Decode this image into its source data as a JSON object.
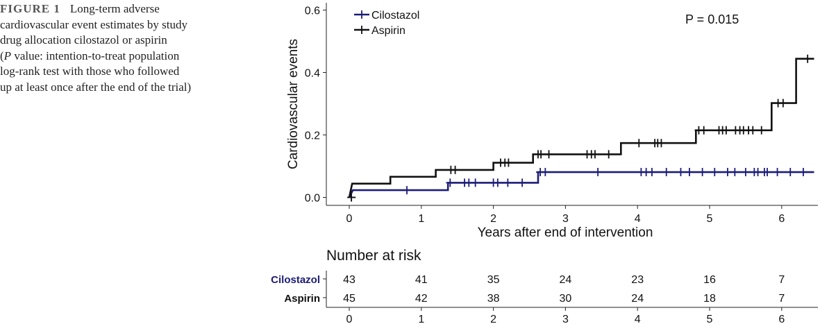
{
  "caption": {
    "label": "FIGURE 1",
    "line1": "Long-term adverse",
    "rest_before_p": "cardiovascular event estimates by study\ndrug allocation cilostazol or aspirin\n(",
    "p_italic": "P",
    "rest_after_p": " value: intention-to-treat population\nlog-rank test with those who followed\nup at least once after the end of the trial)"
  },
  "chart_data": {
    "type": "line",
    "subtype": "kaplan-meier-step",
    "xlabel": "Years after end of intervention",
    "ylabel": "Cardiovascular events",
    "xlim": [
      -0.3,
      6.45
    ],
    "ylim": [
      -0.02,
      0.6
    ],
    "x_ticks": [
      0,
      1,
      2,
      3,
      4,
      5,
      6
    ],
    "y_ticks": [
      0.0,
      0.2,
      0.4,
      0.6
    ],
    "y_tick_labels": [
      "0.0",
      "0.2",
      "0.4",
      "0.6"
    ],
    "annotation": "P = 0.015",
    "legend": {
      "placement": "top-left",
      "entries": [
        "Cilostazol",
        "Aspirin"
      ]
    },
    "series": [
      {
        "name": "Cilostazol",
        "color": "#1c1c78",
        "step_points": [
          [
            0,
            0
          ],
          [
            0.05,
            0.023
          ],
          [
            1.37,
            0.023
          ],
          [
            1.37,
            0.047
          ],
          [
            2.62,
            0.047
          ],
          [
            2.62,
            0.081
          ],
          [
            6.45,
            0.081
          ]
        ],
        "censor_x": [
          0.03,
          0.8,
          1.4,
          1.6,
          1.66,
          1.75,
          2.0,
          2.06,
          2.2,
          2.4,
          2.65,
          2.72,
          3.45,
          4.05,
          4.12,
          4.2,
          4.4,
          4.6,
          4.72,
          4.9,
          5.07,
          5.25,
          5.35,
          5.5,
          5.62,
          5.67,
          5.76,
          5.8,
          5.94,
          6.12,
          6.3
        ]
      },
      {
        "name": "Aspirin",
        "color": "#111111",
        "step_points": [
          [
            0,
            0
          ],
          [
            0.04,
            0.044
          ],
          [
            0.57,
            0.044
          ],
          [
            0.57,
            0.066
          ],
          [
            1.2,
            0.066
          ],
          [
            1.2,
            0.088
          ],
          [
            2.0,
            0.088
          ],
          [
            2.0,
            0.111
          ],
          [
            2.55,
            0.111
          ],
          [
            2.55,
            0.138
          ],
          [
            3.77,
            0.138
          ],
          [
            3.77,
            0.174
          ],
          [
            4.81,
            0.174
          ],
          [
            4.81,
            0.215
          ],
          [
            5.86,
            0.215
          ],
          [
            5.86,
            0.302
          ],
          [
            6.2,
            0.302
          ],
          [
            6.2,
            0.444
          ],
          [
            6.45,
            0.444
          ]
        ],
        "censor_x": [
          0.03,
          1.41,
          1.47,
          2.1,
          2.16,
          2.21,
          2.62,
          2.66,
          2.77,
          3.3,
          3.36,
          3.41,
          3.6,
          4.02,
          4.24,
          4.28,
          4.33,
          4.85,
          4.92,
          5.13,
          5.18,
          5.23,
          5.36,
          5.42,
          5.47,
          5.54,
          5.6,
          5.72,
          5.95,
          6.02,
          6.36
        ]
      }
    ]
  },
  "risk_table": {
    "title": "Number at risk",
    "x_ticks": [
      0,
      1,
      2,
      3,
      4,
      5,
      6
    ],
    "rows": [
      {
        "label": "Cilostazol",
        "color": "#1c1c78",
        "values": [
          "43",
          "41",
          "35",
          "24",
          "23",
          "16",
          "7"
        ]
      },
      {
        "label": "Aspirin",
        "color": "#111111",
        "values": [
          "45",
          "42",
          "38",
          "30",
          "24",
          "18",
          "7"
        ]
      }
    ]
  }
}
